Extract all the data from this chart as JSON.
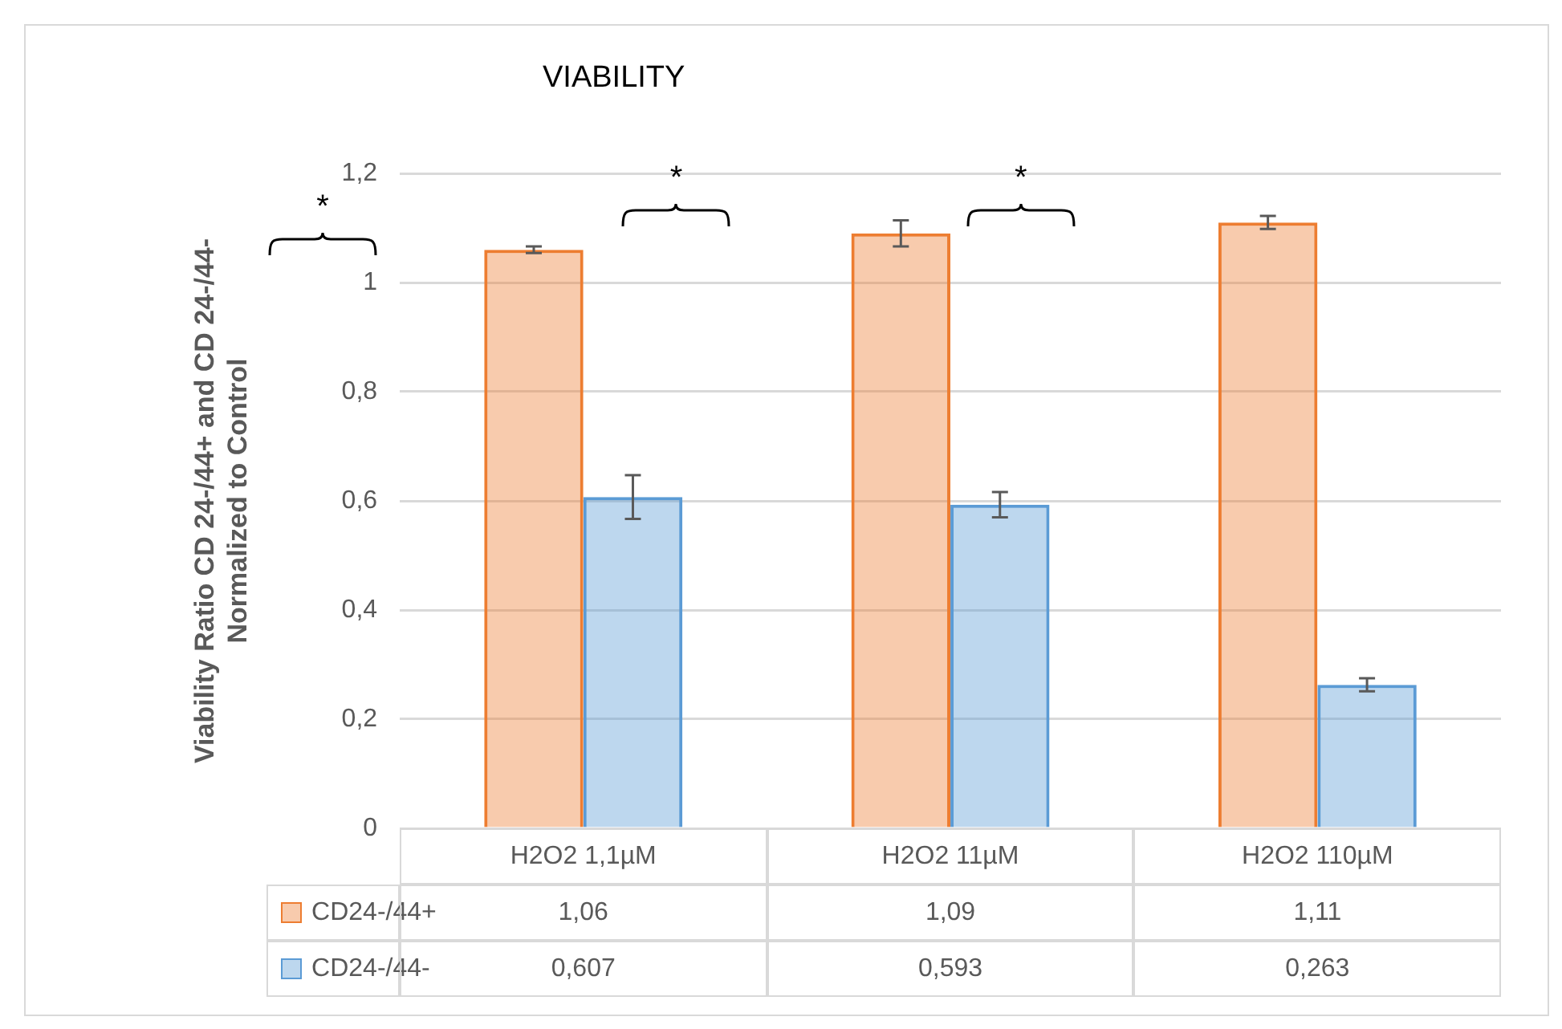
{
  "chart_data": {
    "type": "bar",
    "title": "VIABILITY",
    "ylabel": "Viability Ratio CD 24-/44+ and CD 24-/44- Normalized to Control",
    "categories": [
      "H2O2 1,1µM",
      "H2O2 11µM",
      "H2O2 110µM"
    ],
    "series": [
      {
        "name": "CD24-/44+",
        "color": "#ed7d31",
        "values": [
          1.06,
          1.09,
          1.11
        ],
        "errors": [
          0.006,
          0.024,
          0.012
        ],
        "value_labels": [
          "1,06",
          "1,09",
          "1,11"
        ]
      },
      {
        "name": "CD24-/44-",
        "color": "#5b9bd5",
        "values": [
          0.607,
          0.593,
          0.263
        ],
        "errors": [
          0.04,
          0.023,
          0.012
        ],
        "value_labels": [
          "0,607",
          "0,593",
          "0,263"
        ]
      }
    ],
    "ylim": [
      0,
      1.2
    ],
    "yticks": [
      {
        "value": 0,
        "label": "0"
      },
      {
        "value": 0.2,
        "label": "0,2"
      },
      {
        "value": 0.4,
        "label": "0,4"
      },
      {
        "value": 0.6,
        "label": "0,6"
      },
      {
        "value": 0.8,
        "label": "0,8"
      },
      {
        "value": 1,
        "label": "1"
      },
      {
        "value": 1.2,
        "label": "1,2"
      }
    ],
    "grid": "y",
    "legend": "bottom left",
    "annotations": [
      "*",
      "*",
      "*"
    ]
  }
}
